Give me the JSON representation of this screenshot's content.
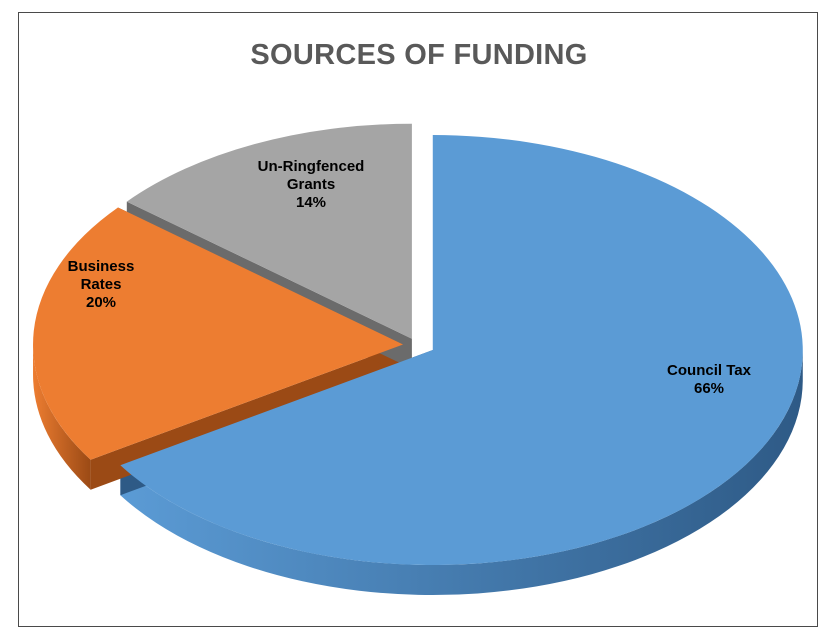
{
  "chart_data": {
    "type": "pie",
    "title": "SOURCES OF FUNDING",
    "slices": [
      {
        "name": "Council Tax",
        "value": 66,
        "label": "66%",
        "color": "#5b9bd5"
      },
      {
        "name": "Business Rates",
        "value": 20,
        "label": "20%",
        "color": "#ed7d31"
      },
      {
        "name": "Un-Ringfenced Grants",
        "value": 14,
        "label": "14%",
        "color": "#a5a5a5"
      }
    ],
    "style": "3d-exploded",
    "legend": "none"
  }
}
